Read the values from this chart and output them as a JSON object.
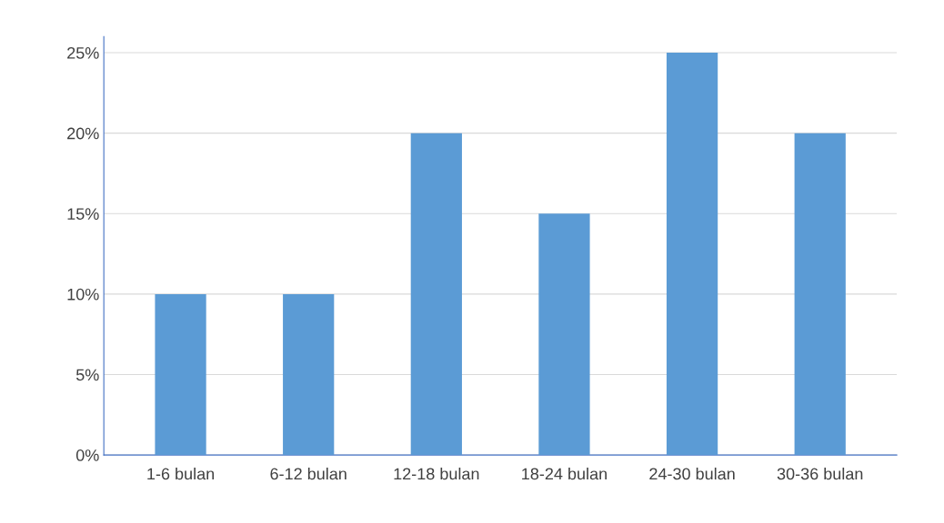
{
  "chart_data": {
    "type": "bar",
    "categories": [
      "1-6 bulan",
      "6-12 bulan",
      "12-18 bulan",
      "18-24 bulan",
      "24-30 bulan",
      "30-36 bulan"
    ],
    "values": [
      10,
      10,
      20,
      15,
      25,
      20
    ],
    "color": "#5b9bd5",
    "ylim": [
      0,
      26
    ],
    "yticks": [
      {
        "value": 0,
        "label": "0%"
      },
      {
        "value": 5,
        "label": "5%"
      },
      {
        "value": 10,
        "label": "10%"
      },
      {
        "value": 15,
        "label": "15%"
      },
      {
        "value": 20,
        "label": "20%"
      },
      {
        "value": 25,
        "label": "25%"
      }
    ],
    "grid": "y"
  }
}
